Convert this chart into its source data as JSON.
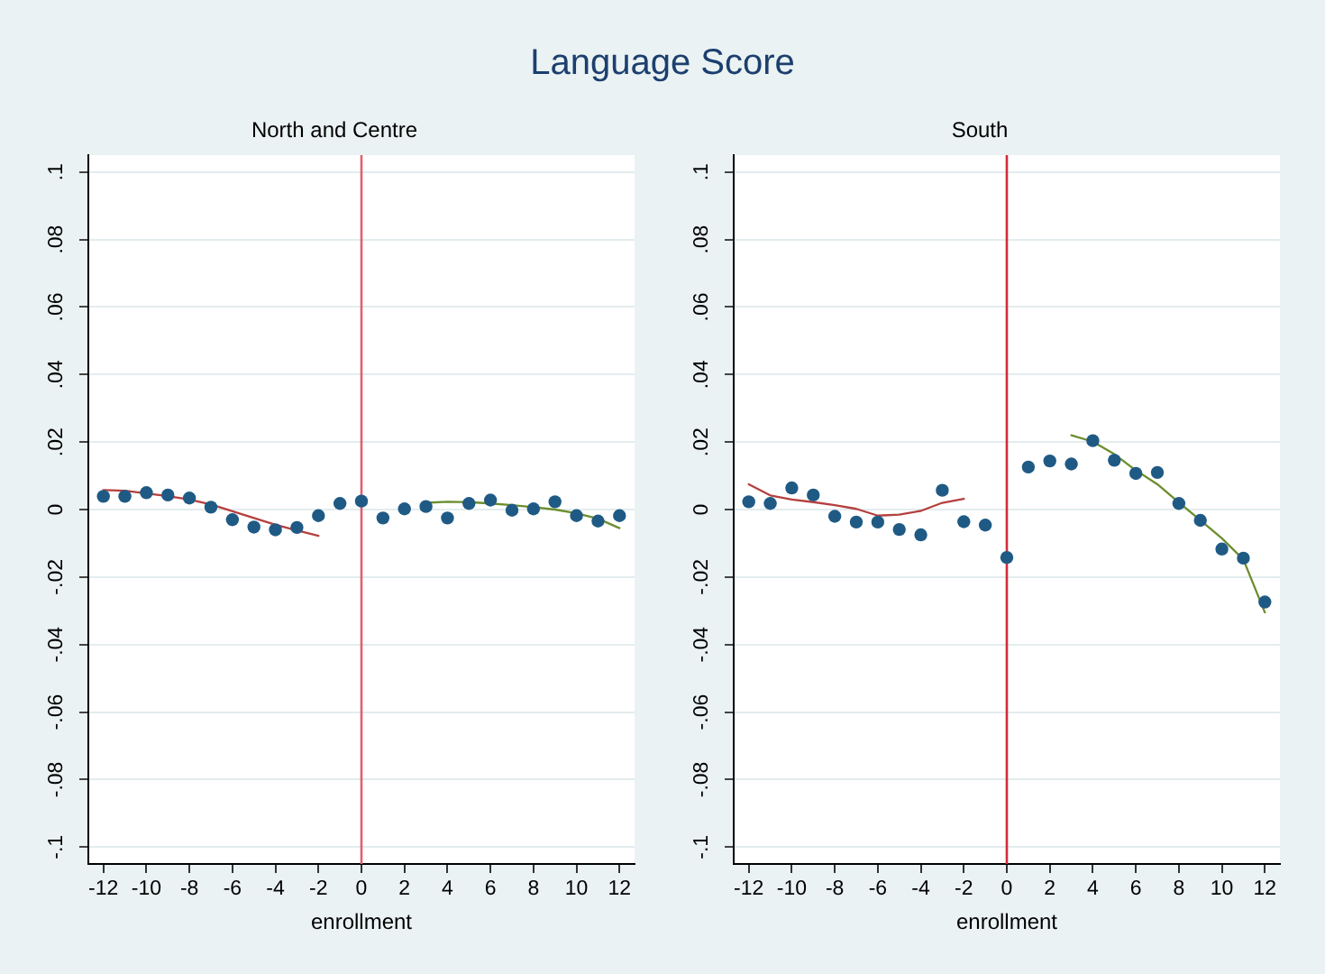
{
  "chart_data": [
    {
      "type": "scatter",
      "title": "Language Score",
      "subtitle": "North and Centre",
      "xlabel": "enrollment",
      "xlim": [
        -12.7,
        12.7
      ],
      "xticks": [
        -12,
        -10,
        -8,
        -6,
        -4,
        -2,
        0,
        2,
        4,
        6,
        8,
        10,
        12
      ],
      "ylim": [
        -0.105,
        0.105
      ],
      "yticks": [
        {
          "value": -0.1,
          "label": "-.1"
        },
        {
          "value": -0.08,
          "label": "-.08"
        },
        {
          "value": -0.06,
          "label": "-.06"
        },
        {
          "value": -0.04,
          "label": "-.04"
        },
        {
          "value": -0.02,
          "label": "-.02"
        },
        0,
        {
          "value": 0.02,
          "label": ".02"
        },
        {
          "value": 0.04,
          "label": ".04"
        },
        {
          "value": 0.06,
          "label": ".06"
        },
        {
          "value": 0.08,
          "label": ".08"
        },
        {
          "value": 0.1,
          "label": ".1"
        }
      ],
      "grid": "y",
      "legend": false,
      "ref_lines": [
        {
          "axis": "x",
          "value": 0,
          "color": "#e0606f"
        }
      ],
      "series": [
        {
          "type": "scatter",
          "marker": "circle",
          "color": "#1f5a85",
          "x": [
            -12,
            -11,
            -10,
            -9,
            -8,
            -7,
            -6,
            -5,
            -4,
            -3,
            -2,
            -1,
            0,
            1,
            2,
            3,
            4,
            5,
            6,
            7,
            8,
            9,
            10,
            11,
            12
          ],
          "values": [
            0.0039,
            0.0039,
            0.005,
            0.0043,
            0.0034,
            0.0007,
            -0.003,
            -0.0052,
            -0.006,
            -0.0053,
            -0.0018,
            0.0018,
            0.0025,
            -0.0025,
            0.0002,
            0.0009,
            -0.0025,
            0.0018,
            0.0028,
            -0.0002,
            0.0002,
            0.0023,
            -0.0018,
            -0.0034,
            -0.0018
          ]
        },
        {
          "type": "line",
          "marker": "none",
          "color": "#b5403f",
          "x": [
            -12,
            -11,
            -10,
            -9,
            -8,
            -7,
            -6,
            -5,
            -4,
            -3,
            -2
          ],
          "values": [
            0.0058,
            0.0056,
            0.0048,
            0.004,
            0.003,
            0.0015,
            -0.0005,
            -0.0025,
            -0.0045,
            -0.0062,
            -0.0078
          ]
        },
        {
          "type": "line",
          "marker": "none",
          "color": "#6b8e2e",
          "x": [
            3,
            4,
            5,
            6,
            7,
            8,
            9,
            10,
            11,
            12
          ],
          "values": [
            0.002,
            0.0023,
            0.0022,
            0.0018,
            0.0013,
            0.0007,
            0,
            -0.0011,
            -0.0027,
            -0.0055
          ]
        }
      ]
    },
    {
      "type": "scatter",
      "subtitle": "South",
      "xlabel": "enrollment",
      "xlim": [
        -12.7,
        12.7
      ],
      "xticks": [
        -12,
        -10,
        -8,
        -6,
        -4,
        -2,
        0,
        2,
        4,
        6,
        8,
        10,
        12
      ],
      "ylim": [
        -0.105,
        0.105
      ],
      "yticks": [
        {
          "value": -0.1,
          "label": "-.1"
        },
        {
          "value": -0.08,
          "label": "-.08"
        },
        {
          "value": -0.06,
          "label": "-.06"
        },
        {
          "value": -0.04,
          "label": "-.04"
        },
        {
          "value": -0.02,
          "label": "-.02"
        },
        0,
        {
          "value": 0.02,
          "label": ".02"
        },
        {
          "value": 0.04,
          "label": ".04"
        },
        {
          "value": 0.06,
          "label": ".06"
        },
        {
          "value": 0.08,
          "label": ".08"
        },
        {
          "value": 0.1,
          "label": ".1"
        }
      ],
      "grid": "y",
      "legend": false,
      "ref_lines": [
        {
          "axis": "x",
          "value": 0,
          "color": "#d42a3c"
        }
      ],
      "series": [
        {
          "type": "scatter",
          "marker": "circle",
          "color": "#1f5a85",
          "x": [
            -12,
            -11,
            -10,
            -9,
            -8,
            -7,
            -6,
            -5,
            -4,
            -3,
            -2,
            -1,
            0,
            1,
            2,
            3,
            4,
            5,
            6,
            7,
            8,
            9,
            10,
            11,
            12
          ],
          "values": [
            0.0023,
            0.0018,
            0.0064,
            0.0043,
            -0.002,
            -0.0037,
            -0.0037,
            -0.0059,
            -0.0075,
            0.0057,
            -0.0036,
            -0.0046,
            -0.0142,
            0.0126,
            0.0144,
            0.0135,
            0.0204,
            0.0146,
            0.0107,
            0.011,
            0.0018,
            -0.0032,
            -0.0117,
            -0.0144,
            -0.0274
          ]
        },
        {
          "type": "line",
          "marker": "none",
          "color": "#b5403f",
          "x": [
            -12,
            -11,
            -10,
            -9,
            -8,
            -7,
            -6,
            -5,
            -4,
            -3,
            -2
          ],
          "values": [
            0.0075,
            0.0042,
            0.003,
            0.0022,
            0.0013,
            0.0002,
            -0.0018,
            -0.0015,
            -0.0004,
            0.002,
            0.0032
          ]
        },
        {
          "type": "line",
          "marker": "none",
          "color": "#6b8e2e",
          "x": [
            3,
            4,
            5,
            6,
            7,
            8,
            9,
            10,
            11,
            12
          ],
          "values": [
            0.022,
            0.0201,
            0.0164,
            0.0116,
            0.0075,
            0.0021,
            -0.0032,
            -0.0085,
            -0.0148,
            -0.0305
          ]
        }
      ]
    }
  ]
}
